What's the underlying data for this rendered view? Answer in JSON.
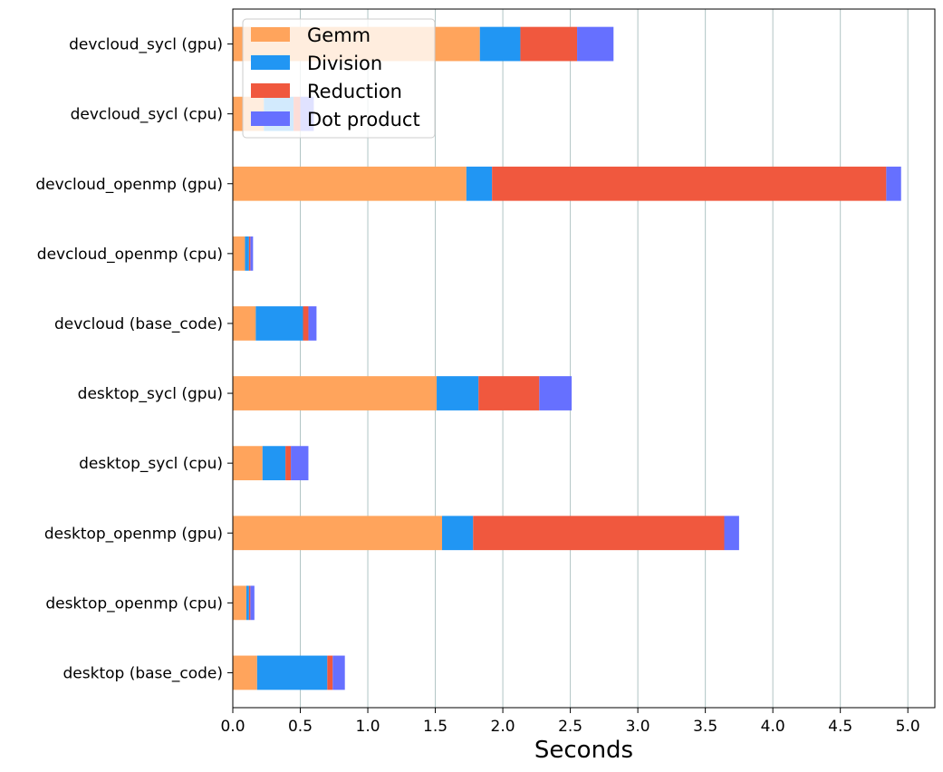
{
  "chart_data": {
    "type": "bar",
    "orientation": "horizontal",
    "stacked": true,
    "xlabel": "Seconds",
    "ylabel": "",
    "xlim": [
      0.0,
      5.2
    ],
    "x_ticks": [
      "0.0",
      "0.5",
      "1.0",
      "1.5",
      "2.0",
      "2.5",
      "3.0",
      "3.5",
      "4.0",
      "4.5",
      "5.0"
    ],
    "grid": "vertical",
    "legend_position": "top-left",
    "categories": [
      "devcloud_sycl (gpu)",
      "devcloud_sycl (cpu)",
      "devcloud_openmp (gpu)",
      "devcloud_openmp (cpu)",
      "devcloud (base_code)",
      "desktop_sycl (gpu)",
      "desktop_sycl (cpu)",
      "desktop_openmp (gpu)",
      "desktop_openmp (cpu)",
      "desktop (base_code)"
    ],
    "series": [
      {
        "name": "Gemm",
        "color": "#FFA45C",
        "values": [
          1.83,
          0.23,
          1.73,
          0.09,
          0.17,
          1.51,
          0.22,
          1.55,
          0.1,
          0.18
        ]
      },
      {
        "name": "Division",
        "color": "#2196F3",
        "values": [
          0.3,
          0.22,
          0.19,
          0.03,
          0.35,
          0.31,
          0.17,
          0.23,
          0.02,
          0.52
        ]
      },
      {
        "name": "Reduction",
        "color": "#F0583E",
        "values": [
          0.42,
          0.05,
          2.92,
          0.01,
          0.04,
          0.45,
          0.04,
          1.86,
          0.01,
          0.04
        ]
      },
      {
        "name": "Dot product",
        "color": "#6670FF",
        "values": [
          0.27,
          0.1,
          0.11,
          0.02,
          0.06,
          0.24,
          0.13,
          0.11,
          0.03,
          0.09
        ]
      }
    ]
  }
}
